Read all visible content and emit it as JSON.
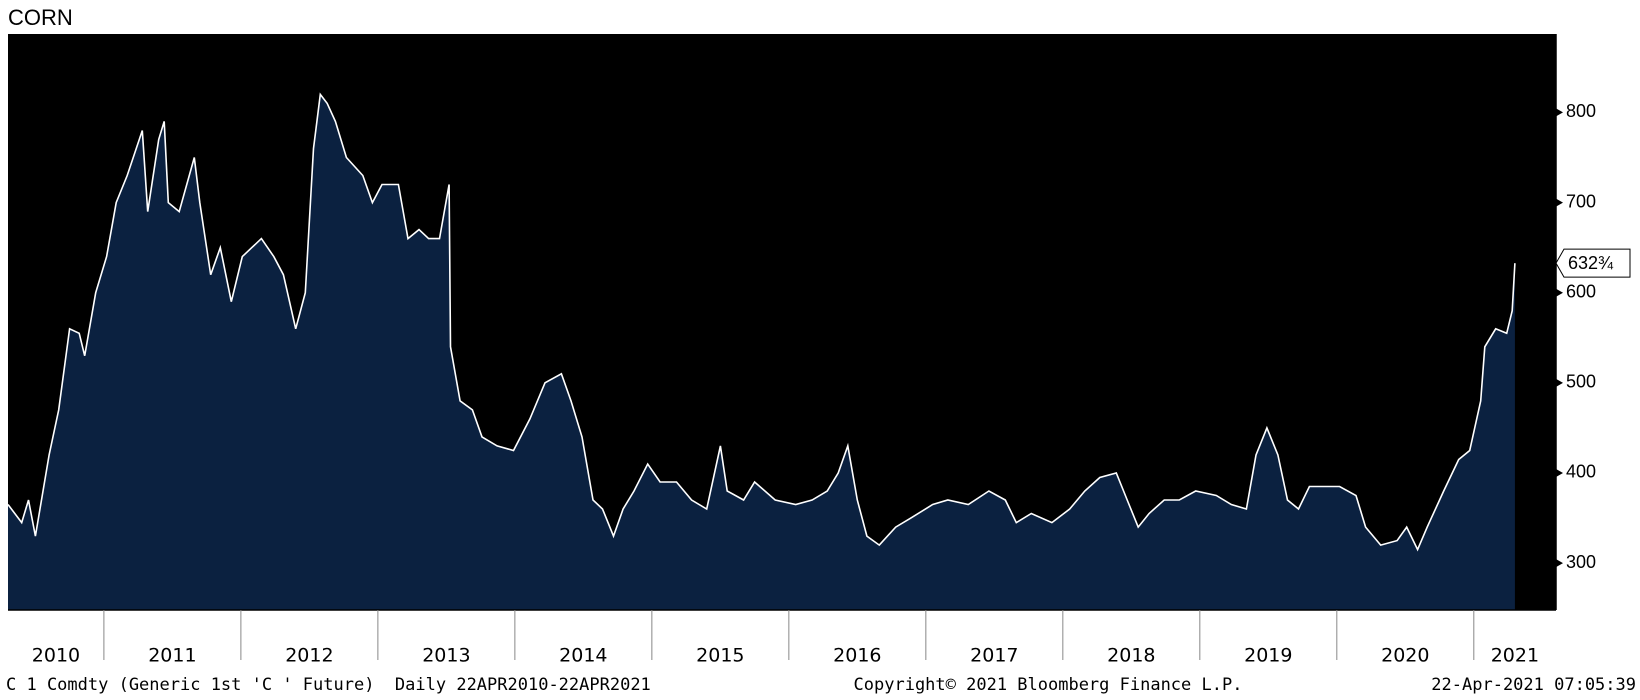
{
  "chart_data": {
    "type": "area",
    "title": "CORN",
    "footer_left": "C 1 Comdty (Generic 1st 'C ' Future)  Daily 22APR2010-22APR2021",
    "footer_center": "Copyright© 2021 Bloomberg Finance L.P.",
    "footer_right": "22-Apr-2021 07:05:39",
    "x": [
      2010.3,
      2010.35,
      2010.4,
      2010.45,
      2010.5,
      2010.6,
      2010.67,
      2010.75,
      2010.82,
      2010.86,
      2010.94,
      2011.02,
      2011.09,
      2011.17,
      2011.28,
      2011.32,
      2011.4,
      2011.44,
      2011.47,
      2011.55,
      2011.66,
      2011.7,
      2011.78,
      2011.85,
      2011.93,
      2012.01,
      2012.08,
      2012.15,
      2012.24,
      2012.31,
      2012.4,
      2012.47,
      2012.53,
      2012.58,
      2012.63,
      2012.69,
      2012.77,
      2012.89,
      2012.96,
      2013.03,
      2013.15,
      2013.22,
      2013.3,
      2013.37,
      2013.45,
      2013.52,
      2013.53,
      2013.6,
      2013.69,
      2013.76,
      2013.87,
      2013.99,
      2014.11,
      2014.22,
      2014.34,
      2014.41,
      2014.49,
      2014.57,
      2014.64,
      2014.72,
      2014.79,
      2014.87,
      2014.97,
      2015.06,
      2015.18,
      2015.29,
      2015.4,
      2015.5,
      2015.55,
      2015.67,
      2015.75,
      2015.9,
      2016.05,
      2016.17,
      2016.28,
      2016.36,
      2016.43,
      2016.5,
      2016.57,
      2016.66,
      2016.78,
      2016.89,
      2017.05,
      2017.16,
      2017.31,
      2017.46,
      2017.58,
      2017.66,
      2017.77,
      2017.92,
      2018.05,
      2018.16,
      2018.27,
      2018.39,
      2018.47,
      2018.55,
      2018.63,
      2018.74,
      2018.85,
      2018.97,
      2019.12,
      2019.23,
      2019.34,
      2019.41,
      2019.49,
      2019.57,
      2019.64,
      2019.72,
      2019.8,
      2019.91,
      2020.02,
      2020.14,
      2020.21,
      2020.32,
      2020.44,
      2020.51,
      2020.59,
      2020.66,
      2020.78,
      2020.89,
      2020.97,
      2021.05,
      2021.08,
      2021.16,
      2021.24,
      2021.28,
      2021.3
    ],
    "values": [
      365,
      355,
      345,
      370,
      330,
      420,
      470,
      560,
      555,
      530,
      600,
      640,
      700,
      730,
      780,
      690,
      770,
      790,
      700,
      690,
      750,
      700,
      620,
      650,
      590,
      640,
      650,
      660,
      640,
      620,
      560,
      600,
      760,
      820,
      810,
      790,
      750,
      730,
      700,
      720,
      720,
      660,
      670,
      660,
      660,
      720,
      540,
      480,
      470,
      440,
      430,
      425,
      460,
      500,
      510,
      480,
      440,
      370,
      360,
      330,
      360,
      380,
      410,
      390,
      390,
      370,
      360,
      430,
      380,
      370,
      390,
      370,
      365,
      370,
      380,
      400,
      430,
      370,
      330,
      320,
      340,
      350,
      365,
      370,
      365,
      380,
      370,
      345,
      355,
      345,
      360,
      380,
      395,
      400,
      370,
      340,
      355,
      370,
      370,
      380,
      375,
      365,
      360,
      420,
      450,
      420,
      370,
      360,
      385,
      385,
      385,
      375,
      340,
      320,
      325,
      340,
      315,
      340,
      380,
      415,
      425,
      480,
      540,
      560,
      555,
      580,
      632.75
    ],
    "color": "#ffffff",
    "fill": "#0b2140",
    "background": "#000000",
    "xlim": [
      2010.3,
      2021.6
    ],
    "ylim": [
      248,
      887
    ],
    "yticks": [
      300,
      400,
      500,
      600,
      700,
      800
    ],
    "xticks": [
      2011,
      2012,
      2013,
      2014,
      2015,
      2016,
      2017,
      2018,
      2019,
      2020,
      2021
    ],
    "year_labels": [
      {
        "value": 2010.65,
        "label": "2010"
      },
      {
        "value": 2011.5,
        "label": "2011"
      },
      {
        "value": 2012.5,
        "label": "2012"
      },
      {
        "value": 2013.5,
        "label": "2013"
      },
      {
        "value": 2014.5,
        "label": "2014"
      },
      {
        "value": 2015.5,
        "label": "2015"
      },
      {
        "value": 2016.5,
        "label": "2016"
      },
      {
        "value": 2017.5,
        "label": "2017"
      },
      {
        "value": 2018.5,
        "label": "2018"
      },
      {
        "value": 2019.5,
        "label": "2019"
      },
      {
        "value": 2020.5,
        "label": "2020"
      },
      {
        "value": 2021.3,
        "label": "2021"
      }
    ],
    "last_price": {
      "value": 632.75,
      "label": "632¾"
    }
  }
}
